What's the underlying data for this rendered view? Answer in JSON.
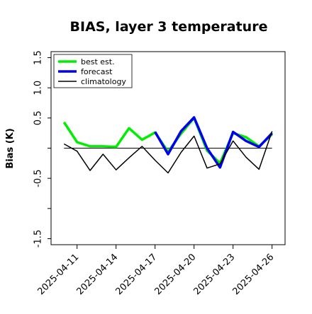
{
  "chart_data": {
    "type": "line",
    "title": "BIAS, layer 3 temperature",
    "ylabel": "Bias (K)",
    "xlabel": "",
    "ylim": [
      -1.6,
      1.6
    ],
    "yticks": [
      -1.5,
      -1.0,
      -0.5,
      0.0,
      0.5,
      1.0,
      1.5
    ],
    "ytick_labels": [
      "-1.5",
      "",
      "-0.5",
      "",
      "0.5",
      "1.0",
      "1.5"
    ],
    "x": [
      "2025-04-10",
      "2025-04-11",
      "2025-04-12",
      "2025-04-13",
      "2025-04-14",
      "2025-04-15",
      "2025-04-16",
      "2025-04-17",
      "2025-04-18",
      "2025-04-19",
      "2025-04-20",
      "2025-04-21",
      "2025-04-22",
      "2025-04-23",
      "2025-04-24",
      "2025-04-25",
      "2025-04-26"
    ],
    "xlim": [
      "2025-04-09",
      "2025-04-27"
    ],
    "xticks": [
      "2025-04-11",
      "2025-04-14",
      "2025-04-17",
      "2025-04-20",
      "2025-04-23",
      "2025-04-26"
    ],
    "xtick_colors": [
      "#000000",
      "#000000",
      "#228b22",
      "#000000",
      "#000000",
      "#000000"
    ],
    "series": [
      {
        "name": "best est.",
        "color": "#00ee00",
        "values": [
          0.43,
          0.1,
          0.03,
          0.03,
          0.02,
          0.33,
          0.14,
          0.26,
          -0.06,
          0.24,
          0.5,
          -0.04,
          -0.25,
          0.25,
          0.18,
          0.03,
          0.23
        ]
      },
      {
        "name": "forecast",
        "color": "#0000ee",
        "values": [
          null,
          null,
          null,
          null,
          null,
          null,
          null,
          0.27,
          -0.1,
          0.28,
          0.51,
          0.0,
          -0.32,
          0.27,
          0.12,
          0.02,
          0.25
        ]
      },
      {
        "name": "climatology",
        "color": "#000000",
        "values": [
          0.07,
          -0.05,
          -0.37,
          -0.1,
          -0.36,
          -0.16,
          0.03,
          -0.2,
          -0.41,
          -0.07,
          0.2,
          -0.33,
          -0.26,
          0.12,
          -0.15,
          -0.35,
          0.28
        ]
      }
    ],
    "zero_line": true,
    "grid": false,
    "legend": "upper-left"
  }
}
